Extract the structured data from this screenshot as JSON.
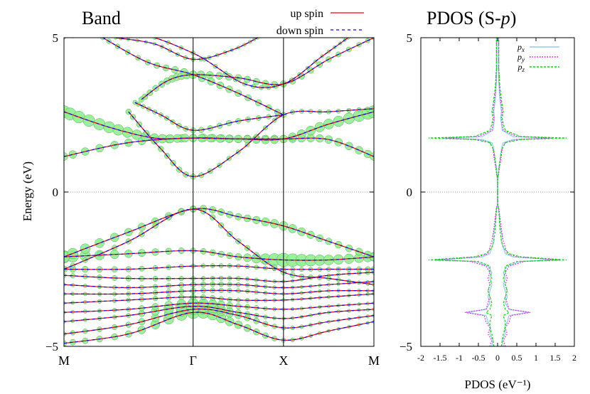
{
  "chart_data": [
    {
      "type": "line",
      "title": "Band",
      "ylabel": "Energy (eV)",
      "xlabel": "",
      "ylim": [
        -5,
        5
      ],
      "yticks": [
        "5",
        "0",
        "−5"
      ],
      "kpath_labels": [
        "M",
        "Γ",
        "X",
        "M"
      ],
      "kpath_positions": [
        0,
        1,
        1.7,
        2.4
      ],
      "fermi_level": 0,
      "legend_position": "top-center",
      "series": [
        {
          "name": "up spin",
          "color": "#ff0000",
          "style": "solid"
        },
        {
          "name": "down spin",
          "color": "#0000ff",
          "style": "dashed"
        }
      ],
      "fatband_color": "#90ee90",
      "bands": [
        {
          "points": [
            [
              0,
              -4.9
            ],
            [
              0.5,
              -4.6
            ],
            [
              1,
              -3.9
            ],
            [
              1.35,
              -4.3
            ],
            [
              1.7,
              -4.8
            ],
            [
              2.05,
              -4.5
            ],
            [
              2.4,
              -4.2
            ]
          ],
          "weights": [
            0.3,
            0.4,
            0.9,
            0.5,
            0.2,
            0.1,
            0.1
          ]
        },
        {
          "points": [
            [
              0,
              -4.6
            ],
            [
              0.5,
              -4.3
            ],
            [
              1,
              -3.8
            ],
            [
              1.35,
              -4.0
            ],
            [
              1.7,
              -4.4
            ],
            [
              2.05,
              -4.2
            ],
            [
              2.4,
              -4.0
            ]
          ],
          "weights": [
            0.2,
            0.3,
            0.8,
            0.4,
            0.2,
            0.1,
            0.1
          ]
        },
        {
          "points": [
            [
              0,
              -4.2
            ],
            [
              0.5,
              -4.0
            ],
            [
              1,
              -3.7
            ],
            [
              1.35,
              -3.9
            ],
            [
              1.7,
              -4.1
            ],
            [
              2.05,
              -3.9
            ],
            [
              2.4,
              -3.8
            ]
          ],
          "weights": [
            0.1,
            0.2,
            1.0,
            0.3,
            0.1,
            0.1,
            0.1
          ]
        },
        {
          "points": [
            [
              0,
              -3.9
            ],
            [
              0.5,
              -3.8
            ],
            [
              1,
              -3.6
            ],
            [
              1.35,
              -3.7
            ],
            [
              1.7,
              -3.8
            ],
            [
              2.05,
              -3.7
            ],
            [
              2.4,
              -3.6
            ]
          ],
          "weights": [
            0.1,
            0.2,
            0.7,
            0.3,
            0.1,
            0.1,
            0.1
          ]
        },
        {
          "points": [
            [
              0,
              -3.6
            ],
            [
              0.5,
              -3.5
            ],
            [
              1,
              -3.4
            ],
            [
              1.35,
              -3.5
            ],
            [
              1.7,
              -3.5
            ],
            [
              2.05,
              -3.4
            ],
            [
              2.4,
              -3.3
            ]
          ],
          "weights": [
            0.1,
            0.2,
            0.3,
            0.2,
            0.1,
            0.1,
            0.1
          ]
        },
        {
          "points": [
            [
              0,
              -3.3
            ],
            [
              0.5,
              -3.3
            ],
            [
              1,
              -3.2
            ],
            [
              1.35,
              -3.2
            ],
            [
              1.7,
              -3.3
            ],
            [
              2.05,
              -3.2
            ],
            [
              2.4,
              -3.2
            ]
          ],
          "weights": [
            0.1,
            0.2,
            0.3,
            0.2,
            0.1,
            0.1,
            0.1
          ]
        },
        {
          "points": [
            [
              0,
              -3.0
            ],
            [
              0.5,
              -3.1
            ],
            [
              1,
              -3.0
            ],
            [
              1.35,
              -3.0
            ],
            [
              1.7,
              -3.1
            ],
            [
              2.05,
              -3.0
            ],
            [
              2.4,
              -2.9
            ]
          ],
          "weights": [
            0.1,
            0.2,
            0.3,
            0.2,
            0.1,
            0.1,
            0.1
          ]
        },
        {
          "points": [
            [
              0,
              -2.7
            ],
            [
              0.5,
              -2.8
            ],
            [
              1,
              -2.8
            ],
            [
              1.35,
              -2.8
            ],
            [
              1.7,
              -2.9
            ],
            [
              2.05,
              -2.7
            ],
            [
              2.4,
              -2.6
            ]
          ],
          "weights": [
            0.2,
            0.3,
            0.2,
            0.2,
            0.1,
            0.1,
            0.2
          ]
        },
        {
          "points": [
            [
              0,
              -2.5
            ],
            [
              0.5,
              -2.5
            ],
            [
              1,
              -2.4
            ],
            [
              1.35,
              -2.4
            ],
            [
              1.7,
              -2.5
            ],
            [
              2.05,
              -2.5
            ],
            [
              2.4,
              -2.5
            ]
          ],
          "weights": [
            0.4,
            0.3,
            0.2,
            0.2,
            0.2,
            0.2,
            0.3
          ]
        },
        {
          "points": [
            [
              0,
              -2.1
            ],
            [
              0.5,
              -2.0
            ],
            [
              1,
              -1.9
            ],
            [
              1.35,
              -2.1
            ],
            [
              1.7,
              -2.2
            ],
            [
              2.05,
              -2.2
            ],
            [
              2.4,
              -2.1
            ]
          ],
          "weights": [
            0.9,
            0.5,
            0.3,
            0.4,
            1.0,
            0.7,
            0.6
          ]
        },
        {
          "points": [
            [
              0,
              -2.1
            ],
            [
              0.5,
              -1.3
            ],
            [
              1,
              -0.55
            ],
            [
              1.35,
              -0.8
            ],
            [
              1.7,
              -1.1
            ],
            [
              2.05,
              -1.6
            ],
            [
              2.4,
              -2.1
            ]
          ],
          "weights": [
            0.8,
            0.5,
            0.4,
            0.4,
            0.6,
            0.4,
            0.5
          ]
        },
        {
          "points": [
            [
              0,
              -2.5
            ],
            [
              0.5,
              -1.6
            ],
            [
              1,
              -0.55
            ],
            [
              1.35,
              -1.6
            ],
            [
              1.7,
              -2.6
            ],
            [
              2.05,
              -2.8
            ],
            [
              2.4,
              -3.0
            ]
          ],
          "weights": [
            0.2,
            0.3,
            0.3,
            0.3,
            0.3,
            0.2,
            0.1
          ]
        },
        {
          "points": [
            [
              0,
              1.15
            ],
            [
              0.5,
              1.6
            ],
            [
              1,
              1.75
            ],
            [
              1.35,
              1.72
            ],
            [
              1.7,
              1.72
            ],
            [
              2.05,
              1.7
            ],
            [
              2.4,
              1.15
            ]
          ],
          "weights": [
            0.5,
            0.5,
            0.5,
            0.5,
            0.5,
            0.5,
            0.5
          ]
        },
        {
          "points": [
            [
              0,
              2.6
            ],
            [
              0.35,
              2.1
            ],
            [
              0.7,
              1.75
            ],
            [
              1,
              1.75
            ],
            [
              1.35,
              1.72
            ],
            [
              1.7,
              1.72
            ],
            [
              2.05,
              2.2
            ],
            [
              2.4,
              2.6
            ]
          ],
          "weights": [
            0.9,
            0.8,
            0.6,
            0.5,
            0.5,
            0.5,
            0.7,
            0.9
          ]
        },
        {
          "points": [
            [
              0.5,
              2.6
            ],
            [
              0.75,
              1.4
            ],
            [
              1,
              0.5
            ],
            [
              1.35,
              1.3
            ],
            [
              1.7,
              2.5
            ],
            [
              2.05,
              2.6
            ],
            [
              2.4,
              2.7
            ]
          ],
          "weights": [
            0.3,
            0.3,
            0.3,
            0.2,
            0.2,
            0.2,
            0.2
          ]
        },
        {
          "points": [
            [
              0.55,
              2.9
            ],
            [
              0.75,
              2.5
            ],
            [
              1,
              2.0
            ],
            [
              1.35,
              2.3
            ],
            [
              1.7,
              2.5
            ]
          ],
          "weights": [
            0.2,
            0.2,
            0.3,
            0.3,
            0.2
          ]
        },
        {
          "points": [
            [
              0.6,
              3.0
            ],
            [
              0.8,
              3.6
            ],
            [
              1,
              3.8
            ],
            [
              1.35,
              3.7
            ],
            [
              1.7,
              3.5
            ],
            [
              2.05,
              4.3
            ],
            [
              2.4,
              5.0
            ]
          ],
          "weights": [
            0.3,
            0.4,
            0.5,
            0.4,
            0.4,
            0.3,
            0.2
          ]
        },
        {
          "points": [
            [
              0.3,
              5.0
            ],
            [
              0.65,
              4.2
            ],
            [
              1,
              3.8
            ],
            [
              1.35,
              3.2
            ],
            [
              1.7,
              2.5
            ]
          ],
          "weights": [
            0.2,
            0.3,
            0.5,
            0.4,
            0.3
          ]
        },
        {
          "points": [
            [
              0,
              5.0
            ],
            [
              0.5,
              5.2
            ],
            [
              1,
              4.5
            ],
            [
              1.4,
              3.5
            ],
            [
              1.7,
              3.5
            ],
            [
              2.0,
              4.4
            ],
            [
              2.2,
              5.0
            ]
          ],
          "weights": [
            0.1,
            0.1,
            0.2,
            0.2,
            0.2,
            0.1,
            0.1
          ]
        },
        {
          "points": [
            [
              0.4,
              5.0
            ],
            [
              0.7,
              4.8
            ],
            [
              1,
              4.3
            ],
            [
              1.3,
              4.6
            ],
            [
              1.5,
              5.0
            ]
          ],
          "weights": [
            0.1,
            0.1,
            0.2,
            0.1,
            0.1
          ]
        }
      ]
    },
    {
      "type": "line",
      "title": "PDOS (S-p)",
      "xlabel": "PDOS (eV⁻¹)",
      "ylabel": "",
      "xlim": [
        -2,
        2
      ],
      "ylim": [
        -5,
        5
      ],
      "xticks": [
        "-2",
        "-1.5",
        "-1",
        "-0.5",
        "0",
        "0.5",
        "1",
        "1.5",
        "2"
      ],
      "yticks": [
        "5",
        "0",
        "−5"
      ],
      "legend_position": "top-right",
      "series": [
        {
          "name": "p",
          "sub": "x",
          "color": "#87ceeb",
          "style": "solid"
        },
        {
          "name": "p",
          "sub": "y",
          "color": "#ff00ff",
          "style": "dotted"
        },
        {
          "name": "p",
          "sub": "z",
          "color": "#00dd00",
          "style": "dashed"
        }
      ],
      "curves": {
        "energy": [
          -5.0,
          -4.8,
          -4.6,
          -4.4,
          -4.2,
          -4.0,
          -3.9,
          -3.8,
          -3.6,
          -3.4,
          -3.2,
          -3.0,
          -2.8,
          -2.6,
          -2.4,
          -2.25,
          -2.2,
          -2.1,
          -2.0,
          -1.8,
          -1.6,
          -1.4,
          -1.2,
          -1.0,
          -0.8,
          -0.6,
          -0.5,
          -0.4,
          -0.2,
          0.0,
          0.2,
          0.4,
          0.6,
          0.8,
          1.0,
          1.2,
          1.4,
          1.6,
          1.7,
          1.75,
          1.8,
          2.0,
          2.2,
          2.4,
          2.6,
          2.8,
          3.0,
          3.2,
          3.4,
          3.6,
          3.8,
          4.0,
          4.2,
          4.4,
          4.6,
          4.8,
          5.0
        ],
        "px": [
          0.15,
          0.12,
          0.2,
          0.18,
          0.25,
          0.3,
          0.8,
          0.3,
          0.2,
          0.25,
          0.2,
          0.15,
          0.2,
          0.15,
          0.25,
          0.6,
          1.5,
          0.4,
          0.2,
          0.15,
          0.1,
          0.12,
          0.08,
          0.06,
          0.05,
          0.03,
          0.02,
          0.0,
          0.0,
          0.0,
          0.0,
          0.0,
          0.02,
          0.03,
          0.06,
          0.08,
          0.1,
          0.15,
          0.4,
          1.4,
          0.4,
          0.12,
          0.1,
          0.08,
          0.1,
          0.08,
          0.06,
          0.05,
          0.04,
          0.03,
          0.03,
          0.02,
          0.02,
          0.02,
          0.02,
          0.02,
          0.02
        ],
        "py": [
          0.2,
          0.15,
          0.25,
          0.2,
          0.3,
          0.35,
          0.85,
          0.3,
          0.25,
          0.2,
          0.25,
          0.2,
          0.25,
          0.2,
          0.3,
          0.7,
          1.6,
          0.5,
          0.25,
          0.2,
          0.15,
          0.12,
          0.1,
          0.08,
          0.06,
          0.04,
          0.03,
          0.0,
          0.0,
          0.0,
          0.0,
          0.0,
          0.03,
          0.05,
          0.08,
          0.1,
          0.12,
          0.2,
          0.5,
          1.4,
          0.5,
          0.15,
          0.12,
          0.1,
          0.12,
          0.1,
          0.08,
          0.06,
          0.05,
          0.04,
          0.04,
          0.03,
          0.03,
          0.03,
          0.03,
          0.03,
          0.03
        ],
        "pz": [
          0.1,
          0.12,
          0.15,
          0.2,
          0.2,
          0.15,
          0.3,
          0.2,
          0.15,
          0.2,
          0.25,
          0.2,
          0.15,
          0.2,
          0.2,
          0.5,
          1.8,
          0.6,
          0.3,
          0.15,
          0.1,
          0.08,
          0.06,
          0.05,
          0.04,
          0.03,
          0.02,
          0.0,
          0.0,
          0.0,
          0.0,
          0.0,
          0.02,
          0.04,
          0.06,
          0.08,
          0.12,
          0.2,
          0.6,
          1.8,
          0.6,
          0.2,
          0.15,
          0.12,
          0.15,
          0.12,
          0.1,
          0.08,
          0.06,
          0.05,
          0.04,
          0.03,
          0.03,
          0.03,
          0.03,
          0.03,
          0.03
        ]
      }
    }
  ]
}
